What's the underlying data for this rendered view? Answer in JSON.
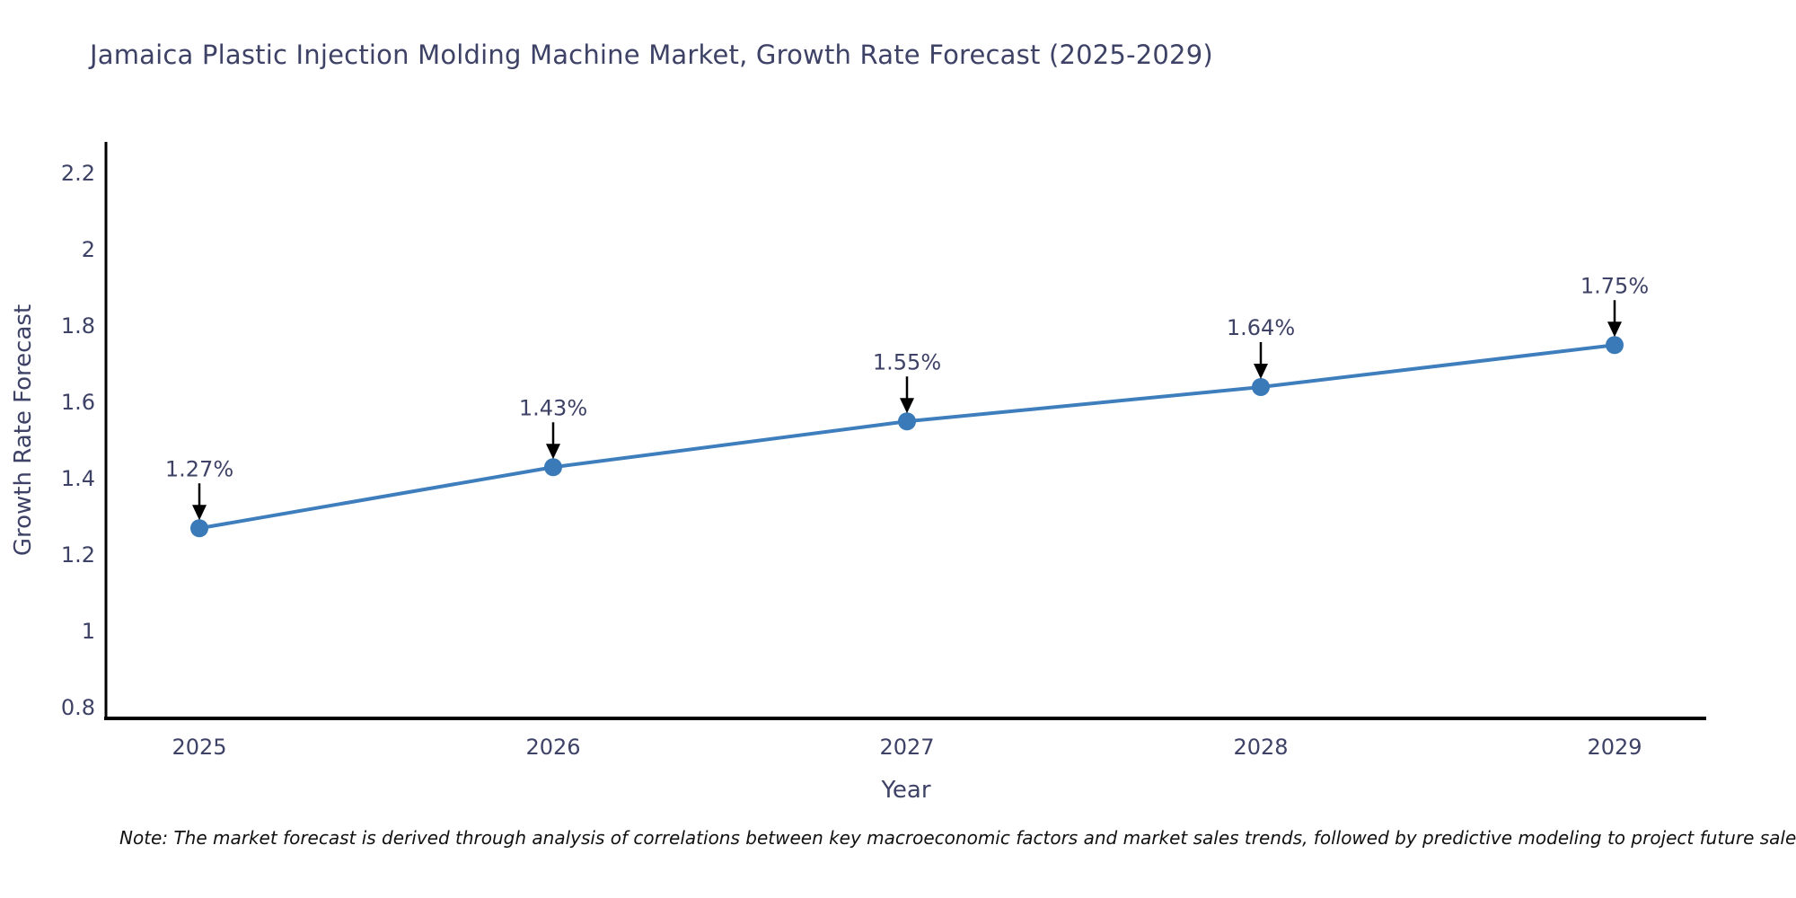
{
  "page": {
    "background": "#ffffff"
  },
  "chart_data": {
    "type": "line",
    "title": "Jamaica Plastic Injection Molding Machine Market, Growth Rate Forecast (2025-2029)",
    "xlabel": "Year",
    "ylabel": "Growth Rate Forecast",
    "categories": [
      "2025",
      "2026",
      "2027",
      "2028",
      "2029"
    ],
    "series": [
      {
        "name": "Growth Rate Forecast",
        "values": [
          1.27,
          1.43,
          1.55,
          1.64,
          1.75
        ]
      }
    ],
    "point_labels": [
      "1.27%",
      "1.43%",
      "1.55%",
      "1.64%",
      "1.75%"
    ],
    "yticks": [
      0.8,
      1,
      1.2,
      1.4,
      1.6,
      1.8,
      2,
      2.2
    ],
    "ylim": [
      0.8,
      2.2
    ],
    "grid": false,
    "legend_position": "none",
    "line_color": "#3e7ebd",
    "marker_color": "#3a7ab8",
    "axis_color": "#000000",
    "text_color": "#3d4266",
    "annotation_color": "#000000"
  },
  "footnote": {
    "text": "Note: The market forecast is derived through analysis of correlations between key macroeconomic factors and market sales trends, followed by predictive modeling to project future sales"
  }
}
